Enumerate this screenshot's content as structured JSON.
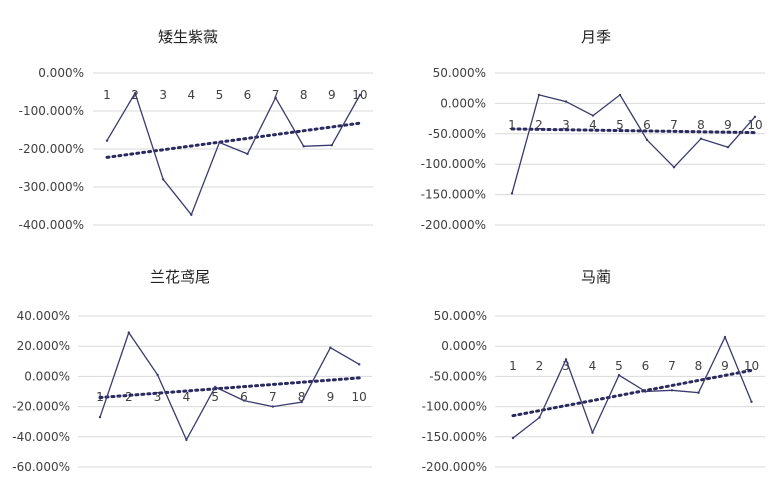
{
  "chart_data": [
    {
      "type": "line",
      "title": "矮生紫薇",
      "categories": [
        "1",
        "2",
        "3",
        "4",
        "5",
        "6",
        "7",
        "8",
        "9",
        "10"
      ],
      "series": [
        {
          "values": [
            -178,
            -53,
            -280,
            -373,
            -183,
            -213,
            -65,
            -193,
            -190,
            -58
          ]
        }
      ],
      "trendline": {
        "style": "dotted",
        "from": -222,
        "to": -132
      },
      "yticks": [
        0,
        -100,
        -200,
        -300,
        -400
      ],
      "ytick_labels": [
        "0.000%",
        "-100.000%",
        "-200.000%",
        "-300.000%",
        "-400.000%"
      ],
      "ylim": [
        -400,
        0
      ],
      "grid": true,
      "legend": "none"
    },
    {
      "type": "line",
      "title": "月季",
      "categories": [
        "1",
        "2",
        "3",
        "4",
        "5",
        "6",
        "7",
        "8",
        "9",
        "10"
      ],
      "series": [
        {
          "values": [
            -148,
            14,
            3,
            -20,
            14,
            -60,
            -105,
            -58,
            -72,
            -22
          ]
        }
      ],
      "trendline": {
        "style": "dotted",
        "from": -42,
        "to": -48
      },
      "yticks": [
        50,
        0,
        -50,
        -100,
        -150,
        -200
      ],
      "ytick_labels": [
        "50.000%",
        "0.000%",
        "-50.000%",
        "-100.000%",
        "-150.000%",
        "-200.000%"
      ],
      "ylim": [
        -200,
        50
      ],
      "grid": true,
      "legend": "none"
    },
    {
      "type": "line",
      "title": "兰花鸢尾",
      "categories": [
        "1",
        "2",
        "3",
        "4",
        "5",
        "6",
        "7",
        "8",
        "9",
        "10"
      ],
      "series": [
        {
          "values": [
            -27,
            29,
            1,
            -42,
            -7,
            -16,
            -20,
            -17,
            19,
            8
          ]
        }
      ],
      "trendline": {
        "style": "dotted",
        "from": -14,
        "to": -1
      },
      "yticks": [
        40,
        20,
        0,
        -20,
        -40,
        -60
      ],
      "ytick_labels": [
        "40.000%",
        "20.000%",
        "0.000%",
        "-20.000%",
        "-40.000%",
        "-60.000%"
      ],
      "ylim": [
        -60,
        40
      ],
      "grid": true,
      "legend": "none"
    },
    {
      "type": "line",
      "title": "马蔺",
      "categories": [
        "1",
        "2",
        "3",
        "4",
        "5",
        "6",
        "7",
        "8",
        "9",
        "10"
      ],
      "series": [
        {
          "values": [
            -152,
            -118,
            -22,
            -143,
            -48,
            -75,
            -73,
            -77,
            15,
            -92
          ]
        }
      ],
      "trendline": {
        "style": "dotted",
        "from": -115,
        "to": -40
      },
      "yticks": [
        50,
        0,
        -50,
        -100,
        -150,
        -200
      ],
      "ytick_labels": [
        "50.000%",
        "0.000%",
        "-50.000%",
        "-100.000%",
        "-150.000%",
        "-200.000%"
      ],
      "ylim": [
        -200,
        50
      ],
      "grid": true,
      "legend": "none"
    }
  ],
  "colors": {
    "line": "#3a3a6e",
    "trend": "#2a2a5e",
    "grid": "#d9d9d9",
    "text": "#404040"
  }
}
